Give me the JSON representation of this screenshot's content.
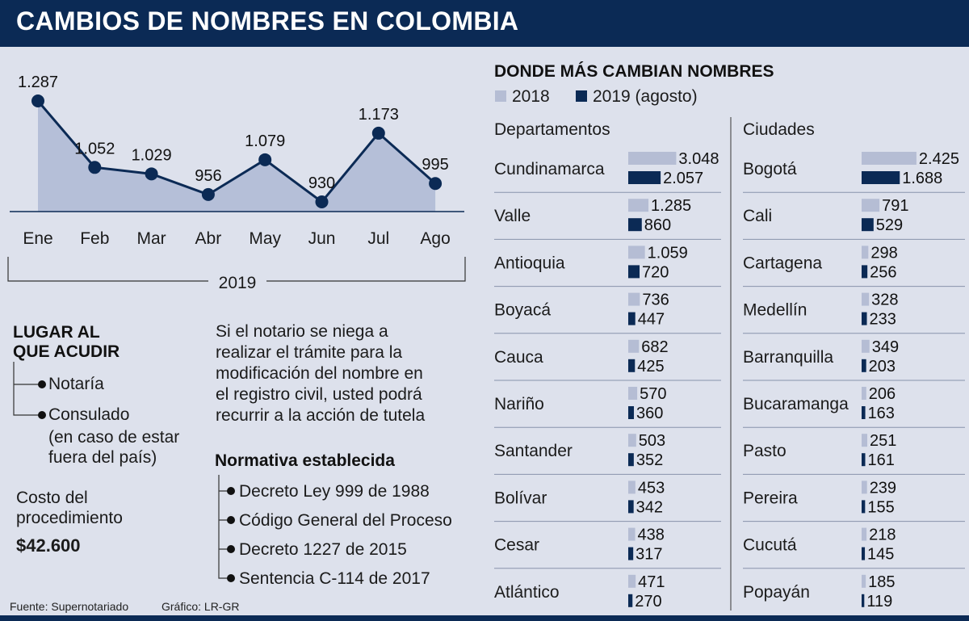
{
  "header": {
    "title": "CAMBIOS DE NOMBRES EN COLOMBIA"
  },
  "chart_data": [
    {
      "type": "area",
      "categories": [
        "Ene",
        "Feb",
        "Mar",
        "Abr",
        "May",
        "Jun",
        "Jul",
        "Ago"
      ],
      "values": [
        1287,
        1052,
        1029,
        956,
        1079,
        930,
        1173,
        995
      ],
      "value_labels": [
        "1.287",
        "1.052",
        "1.029",
        "956",
        "1.079",
        "930",
        "1.173",
        "995"
      ],
      "xlabel": "2019",
      "ylim": [
        880,
        1300
      ],
      "color": "#0b2a55",
      "fill": "#b5bfd8"
    },
    {
      "type": "bar",
      "title": "DONDE MÁS CAMBIAN NOMBRES",
      "legend": [
        {
          "name": "2018",
          "color": "#b5bdd4"
        },
        {
          "name": "2019 (agosto)",
          "color": "#0b2a55"
        }
      ],
      "departamentos": {
        "label": "Departamentos",
        "categories": [
          "Cundinamarca",
          "Valle",
          "Antioquia",
          "Boyacá",
          "Cauca",
          "Nariño",
          "Santander",
          "Bolívar",
          "Cesar",
          "Atlántico"
        ],
        "series": [
          {
            "name": "2018",
            "values": [
              3048,
              1285,
              1059,
              736,
              682,
              570,
              503,
              453,
              438,
              471
            ],
            "labels": [
              "3.048",
              "1.285",
              "1.059",
              "736",
              "682",
              "570",
              "503",
              "453",
              "438",
              "471"
            ]
          },
          {
            "name": "2019 (agosto)",
            "values": [
              2057,
              860,
              720,
              447,
              425,
              360,
              352,
              342,
              317,
              270
            ],
            "labels": [
              "2.057",
              "860",
              "720",
              "447",
              "425",
              "360",
              "352",
              "342",
              "317",
              "270"
            ]
          }
        ]
      },
      "ciudades": {
        "label": "Ciudades",
        "categories": [
          "Bogotá",
          "Cali",
          "Cartagena",
          "Medellín",
          "Barranquilla",
          "Bucaramanga",
          "Pasto",
          "Pereira",
          "Cucutá",
          "Popayán"
        ],
        "series": [
          {
            "name": "2018",
            "values": [
              2425,
              791,
              298,
              328,
              349,
              206,
              251,
              239,
              218,
              185
            ],
            "labels": [
              "2.425",
              "791",
              "298",
              "328",
              "349",
              "206",
              "251",
              "239",
              "218",
              "185"
            ]
          },
          {
            "name": "2019 (agosto)",
            "values": [
              1688,
              529,
              256,
              233,
              203,
              163,
              161,
              155,
              145,
              119
            ],
            "labels": [
              "1.688",
              "529",
              "256",
              "233",
              "203",
              "163",
              "161",
              "155",
              "145",
              "119"
            ]
          }
        ]
      }
    }
  ],
  "lugar": {
    "title_line1": "LUGAR AL",
    "title_line2": "QUE ACUDIR",
    "item1": "Notaría",
    "item2": "Consulado",
    "item2_note_line1": "(en caso de estar",
    "item2_note_line2": "fuera del país)"
  },
  "costo": {
    "label_line1": "Costo del",
    "label_line2": "procedimiento",
    "value": "$42.600"
  },
  "tutela": {
    "line1": "Si el notario se niega a",
    "line2": "realizar el trámite para la",
    "line3": "modificación del nombre en",
    "line4": "el registro civil, usted podrá",
    "line5": "recurrir a la acción de tutela"
  },
  "normativa": {
    "title": "Normativa establecida",
    "items": [
      "Decreto Ley 999 de 1988",
      "Código General del Proceso",
      "Decreto 1227 de 2015",
      "Sentencia C-114 de 2017"
    ]
  },
  "footer": {
    "source": "Fuente:  Supernotariado",
    "credit": "Gráfico: LR-GR"
  }
}
